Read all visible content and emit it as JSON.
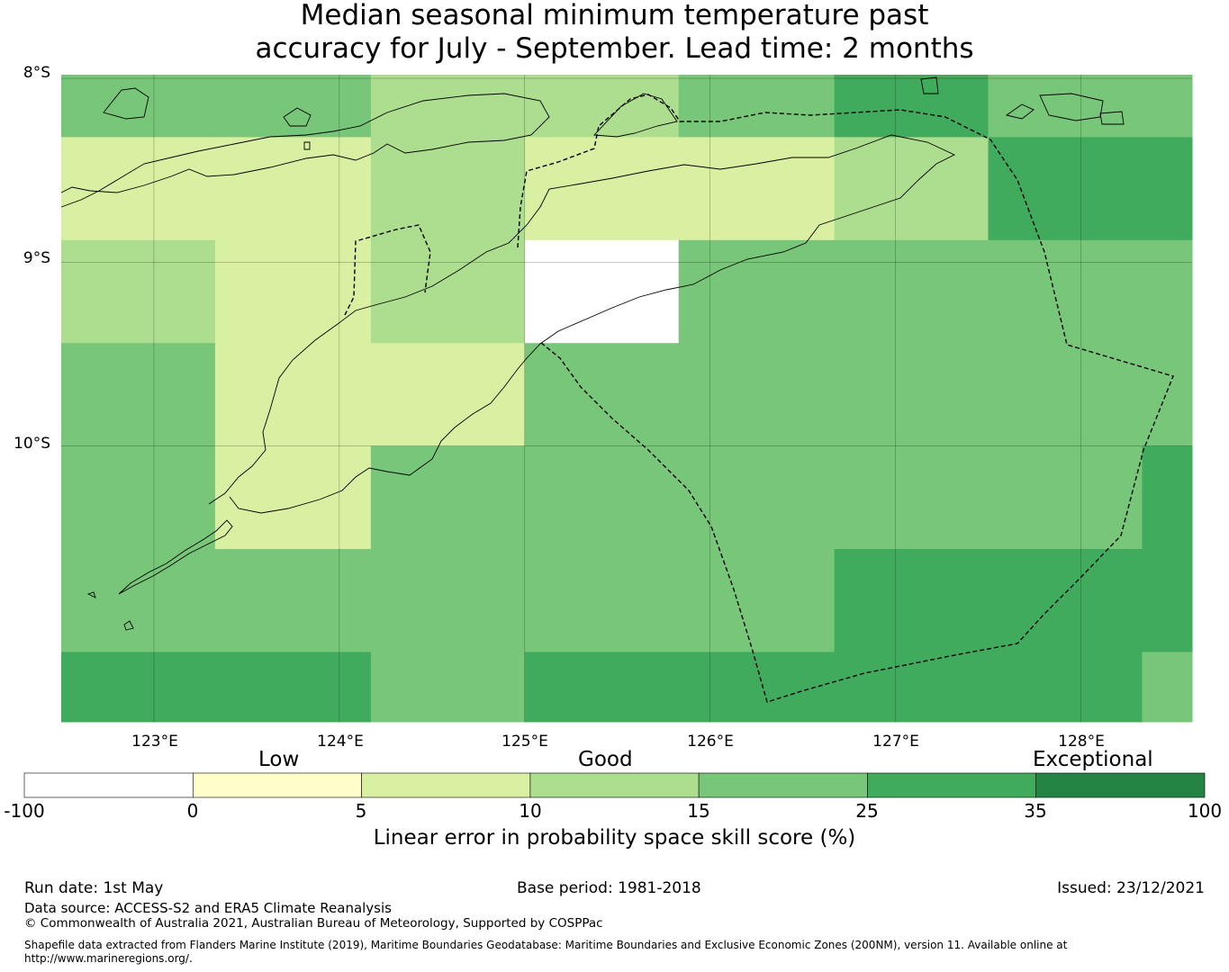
{
  "title": {
    "line1": "Median seasonal minimum temperature past",
    "line2": "accuracy for July - September. Lead time: 2 months"
  },
  "map": {
    "lat_labels": [
      "8°S",
      "9°S",
      "10°S"
    ],
    "lon_labels": [
      "123°E",
      "124°E",
      "125°E",
      "126°E",
      "127°E",
      "128°E"
    ],
    "lat_ticks": [
      -8,
      -9,
      -10
    ],
    "lon_ticks": [
      123,
      124,
      125,
      126,
      127,
      128
    ],
    "extent": {
      "lon_min": 122.5,
      "lon_max": 128.6,
      "lat_min": -11.5,
      "lat_max": -7.98
    },
    "grid": {
      "lon_edges": [
        122.5,
        123.33,
        124.17,
        125.0,
        125.83,
        126.67,
        127.5,
        128.33,
        128.6
      ],
      "lat_edges": [
        -7.98,
        -8.32,
        -8.88,
        -9.44,
        -10.0,
        -10.56,
        -11.12,
        -11.5
      ],
      "categories": [
        [
          4,
          4,
          3,
          3,
          4,
          5,
          4,
          4
        ],
        [
          2,
          2,
          3,
          2,
          2,
          3,
          5,
          5
        ],
        [
          3,
          2,
          3,
          0,
          4,
          4,
          4,
          4
        ],
        [
          4,
          2,
          2,
          4,
          4,
          4,
          4,
          4
        ],
        [
          4,
          2,
          4,
          4,
          4,
          4,
          4,
          5
        ],
        [
          4,
          4,
          4,
          4,
          4,
          5,
          5,
          5
        ],
        [
          5,
          5,
          4,
          5,
          5,
          5,
          5,
          4
        ]
      ]
    },
    "boundary": "dashed",
    "coastlines": "solid-thin"
  },
  "colorbar": {
    "category_labels": [
      "Low",
      "Good",
      "Exceptional"
    ],
    "ticks": [
      "-100",
      "0",
      "5",
      "10",
      "15",
      "25",
      "35",
      "100"
    ],
    "colors": [
      "#ffffff",
      "#ffffcc",
      "#d9f0a3",
      "#addd8e",
      "#78c679",
      "#41ab5d",
      "#238443"
    ],
    "label": "Linear error in probability space skill score (%)"
  },
  "footer": {
    "run_date": "Run date: 1st May",
    "base_period": "Base period: 1981-2018",
    "issued": "Issued: 23/12/2021",
    "data_source": "Data source: ACCESS-S2 and ERA5 Climate Reanalysis",
    "copyright": "© Commonwealth of Australia 2021, Australian Bureau of Meteorology, Supported by COSPPac",
    "shapefile_line1": "Shapefile data extracted from Flanders Marine Institute (2019), Maritime Boundaries Geodatabase: Maritime Boundaries and Exclusive Economic Zones (200NM), version 11. Available online at",
    "shapefile_line2": "http://www.marineregions.org/."
  }
}
